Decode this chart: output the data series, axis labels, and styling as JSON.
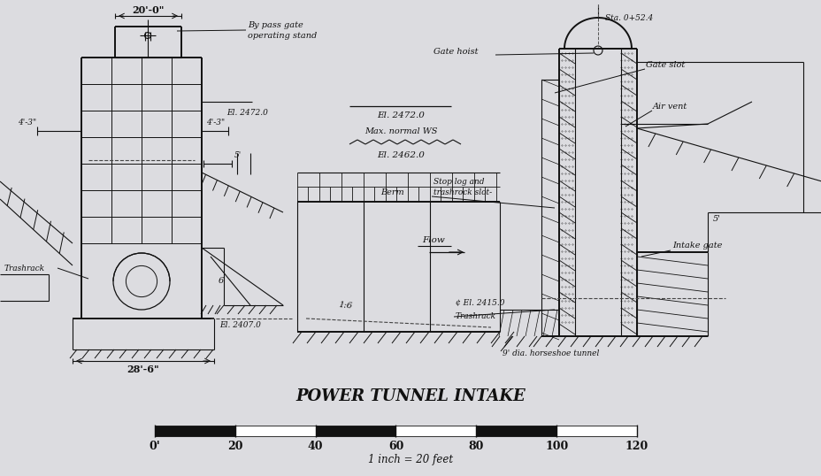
{
  "title": "POWER TUNNEL INTAKE",
  "scale_label": "1 inch = 20 feet",
  "scale_ticks": [
    "0'",
    "20",
    "40",
    "60",
    "80",
    "100",
    "120"
  ],
  "background_color": "#dcdce0",
  "line_color": "#111111",
  "annotations": {
    "20ft_0in": "20'-0\"",
    "4ft_3in_left": "4'-3\"",
    "4ft_3in_right": "4'-3\"",
    "5ft_right": "5'",
    "6": "6",
    "1_6": "1:6",
    "5ft_far_right": "5'",
    "28ft_6in": "28'-6\"",
    "El_2472_left": "El. 2472.0",
    "El_2472_mid": "El. 2472.0",
    "El_2462": "El. 2462.0",
    "Max_normal_WS": "Max. normal WS",
    "El_2407": "El. 2407.0",
    "El_2415": "¢ El. 2415.0",
    "Stop_log": "Stop log and",
    "trashrock_slot": "trashrock slot-",
    "Berm": "Berm",
    "Flow": "Flow",
    "Trashrack_left": "Trashrack",
    "Trashrack_right": "Trashrack",
    "9dia": "9' dia. horseshoe tunnel",
    "bypass_gate": "By pass gate",
    "operating_stand": "operating stand",
    "Gate_hoist": "Gate hoist",
    "Gate_slot": "Gate slot",
    "Air_vent": "Air vent",
    "Intake_gate": "Intake gate",
    "Sta": "Sta. 0+52.4"
  }
}
